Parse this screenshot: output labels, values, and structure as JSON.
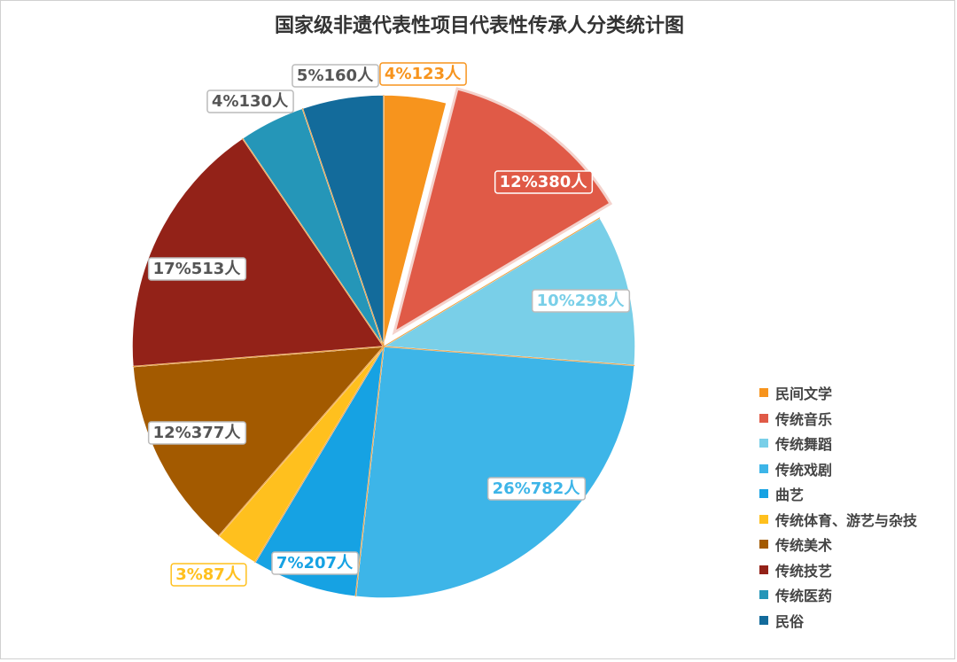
{
  "chart_data": {
    "type": "pie",
    "title": "国家级非遗代表性项目代表性传承人分类统计图",
    "slices": [
      {
        "name": "民间文学",
        "percent_label": "4%",
        "value": 123,
        "unit": "人",
        "color": "#F7941D"
      },
      {
        "name": "传统音乐",
        "percent_label": "12%",
        "value": 380,
        "unit": "人",
        "color": "#E05A47"
      },
      {
        "name": "传统舞蹈",
        "percent_label": "10%",
        "value": 298,
        "unit": "人",
        "color": "#79CFE8"
      },
      {
        "name": "传统戏剧",
        "percent_label": "26%",
        "value": 782,
        "unit": "人",
        "color": "#3DB5E8"
      },
      {
        "name": "曲艺",
        "percent_label": "7%",
        "value": 207,
        "unit": "人",
        "color": "#16A2E3"
      },
      {
        "name": "传统体育、游艺与杂技",
        "percent_label": "3%",
        "value": 87,
        "unit": "人",
        "color": "#FFC01E"
      },
      {
        "name": "传统美术",
        "percent_label": "12%",
        "value": 377,
        "unit": "人",
        "color": "#A35A00"
      },
      {
        "name": "传统技艺",
        "percent_label": "17%",
        "value": 513,
        "unit": "人",
        "color": "#932218"
      },
      {
        "name": "传统医药",
        "percent_label": "4%",
        "value": 130,
        "unit": "人",
        "color": "#2596B8"
      },
      {
        "name": "民俗",
        "percent_label": "5%",
        "value": 160,
        "unit": "人",
        "color": "#136B9B"
      }
    ],
    "exploded_slice": "传统音乐",
    "legend_position": "right"
  }
}
